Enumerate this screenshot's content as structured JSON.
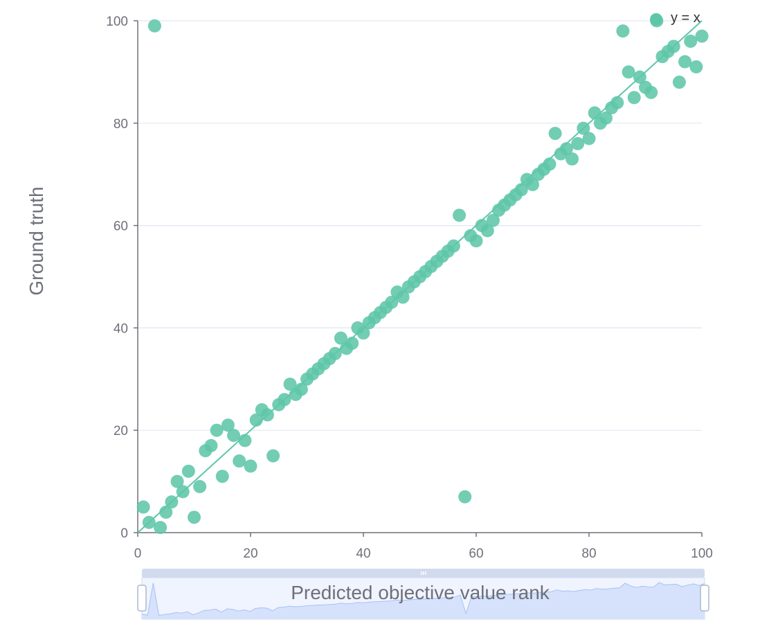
{
  "chart_data": {
    "type": "scatter",
    "xlabel": "Predicted objective value rank",
    "ylabel": "Ground truth",
    "xlim": [
      0,
      100
    ],
    "ylim": [
      0,
      100
    ],
    "x_ticks": [
      0,
      20,
      40,
      60,
      80,
      100
    ],
    "y_ticks": [
      0,
      20,
      40,
      60,
      80,
      100
    ],
    "grid": "horizontal",
    "legend_position": "top-right",
    "series": [
      {
        "name": "y = x",
        "type": "line",
        "x": [
          0,
          100
        ],
        "y": [
          0,
          100
        ]
      },
      {
        "type": "scatter",
        "x": [
          1,
          2,
          3,
          4,
          5,
          6,
          7,
          8,
          9,
          10,
          11,
          12,
          13,
          14,
          15,
          16,
          17,
          18,
          19,
          20,
          21,
          22,
          23,
          24,
          25,
          26,
          27,
          28,
          29,
          30,
          31,
          32,
          33,
          34,
          35,
          36,
          37,
          38,
          39,
          40,
          41,
          42,
          43,
          44,
          45,
          46,
          47,
          48,
          49,
          50,
          51,
          52,
          53,
          54,
          55,
          56,
          57,
          58,
          59,
          60,
          61,
          62,
          63,
          64,
          65,
          66,
          67,
          68,
          69,
          70,
          71,
          72,
          73,
          74,
          75,
          76,
          77,
          78,
          79,
          80,
          81,
          82,
          83,
          84,
          85,
          86,
          87,
          88,
          89,
          90,
          91,
          92,
          93,
          94,
          95,
          96,
          97,
          98,
          99,
          100
        ],
        "y": [
          5,
          2,
          99,
          1,
          4,
          6,
          10,
          8,
          12,
          3,
          9,
          16,
          17,
          20,
          11,
          21,
          19,
          14,
          18,
          13,
          22,
          24,
          23,
          15,
          25,
          26,
          29,
          27,
          28,
          30,
          31,
          32,
          33,
          34,
          35,
          38,
          36,
          37,
          40,
          39,
          41,
          42,
          43,
          44,
          45,
          47,
          46,
          48,
          49,
          50,
          51,
          52,
          53,
          54,
          55,
          56,
          62,
          7,
          58,
          57,
          60,
          59,
          61,
          63,
          64,
          65,
          66,
          67,
          69,
          68,
          70,
          71,
          72,
          78,
          74,
          75,
          73,
          76,
          79,
          77,
          82,
          80,
          81,
          83,
          84,
          98,
          90,
          85,
          89,
          87,
          86,
          100,
          93,
          94,
          95,
          88,
          92,
          96,
          91,
          97
        ]
      }
    ],
    "colors": {
      "series": "#5ec6a8",
      "axis": "#6e7079",
      "grid": "#e0e6f1",
      "zoom_fill": "#d4e0fb",
      "zoom_border": "#d2dbee",
      "zoom_line": "#8fb0f7"
    },
    "data_zoom": {
      "start": 0,
      "end": 100
    }
  }
}
